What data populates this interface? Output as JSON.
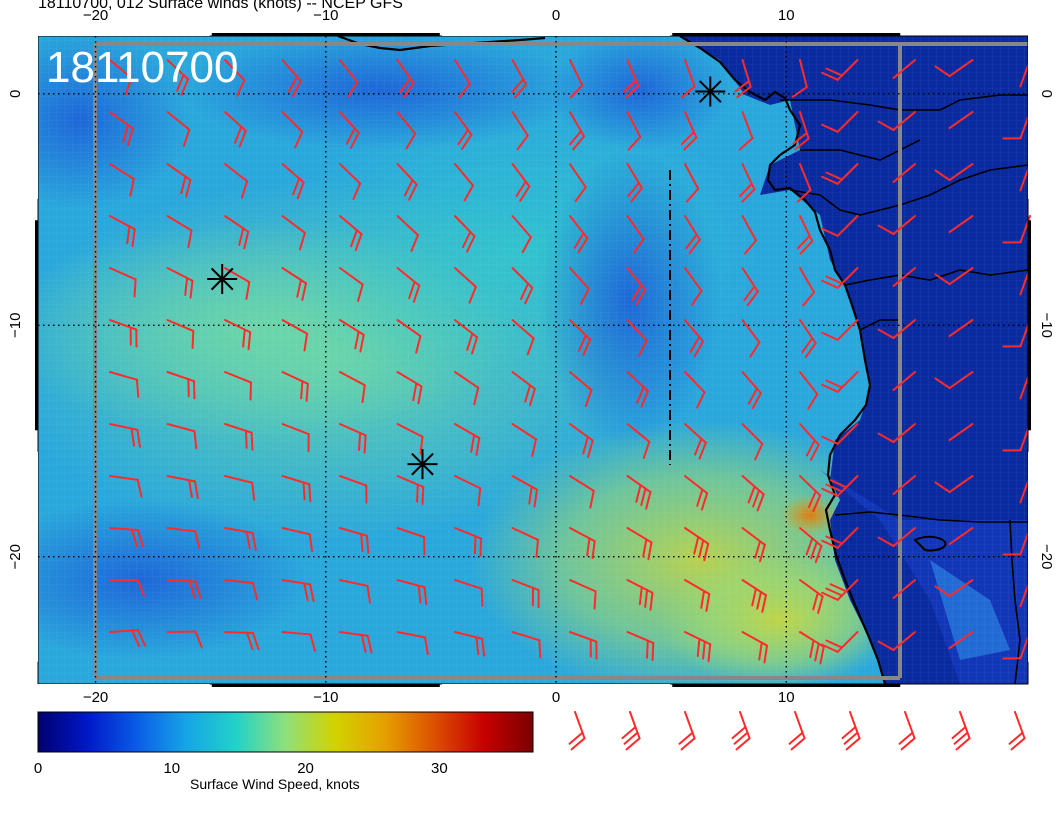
{
  "title": "18110700, 012 Surface winds (knots) -- NCEP GFS",
  "timestamp_label": "18110700",
  "map": {
    "lon_range": [
      -22.5,
      20.5
    ],
    "lat_range": [
      -25.5,
      2.5
    ],
    "lon_ticks": [
      {
        "value": -20,
        "label": "−20"
      },
      {
        "value": -10,
        "label": "−10"
      },
      {
        "value": 0,
        "label": "0"
      },
      {
        "value": 10,
        "label": "10"
      }
    ],
    "lat_ticks": [
      {
        "value": 0,
        "label": "0"
      },
      {
        "value": -10,
        "label": "−10"
      },
      {
        "value": -20,
        "label": "−20"
      }
    ],
    "markers": [
      {
        "name": "marker-star-1",
        "lon": -14.5,
        "lat": -8.0
      },
      {
        "name": "marker-star-2",
        "lon": -5.8,
        "lat": -16.0
      },
      {
        "name": "marker-star-3",
        "lon": 6.7,
        "lat": 0.1
      }
    ],
    "barb_color": "#ff2a2a",
    "coast_color": "#000000"
  },
  "colorbar": {
    "caption": "Surface Wind Speed, knots",
    "range": [
      0,
      37
    ],
    "ticks": [
      {
        "value": 0,
        "label": "0"
      },
      {
        "value": 10,
        "label": "10"
      },
      {
        "value": 20,
        "label": "20"
      },
      {
        "value": 30,
        "label": "30"
      }
    ],
    "colors": [
      "#00006e",
      "#0018c8",
      "#0a5ce6",
      "#16a5e6",
      "#22d2c8",
      "#8ee07a",
      "#d2d200",
      "#e6a000",
      "#dc5000",
      "#c80000",
      "#7a0000"
    ]
  }
}
